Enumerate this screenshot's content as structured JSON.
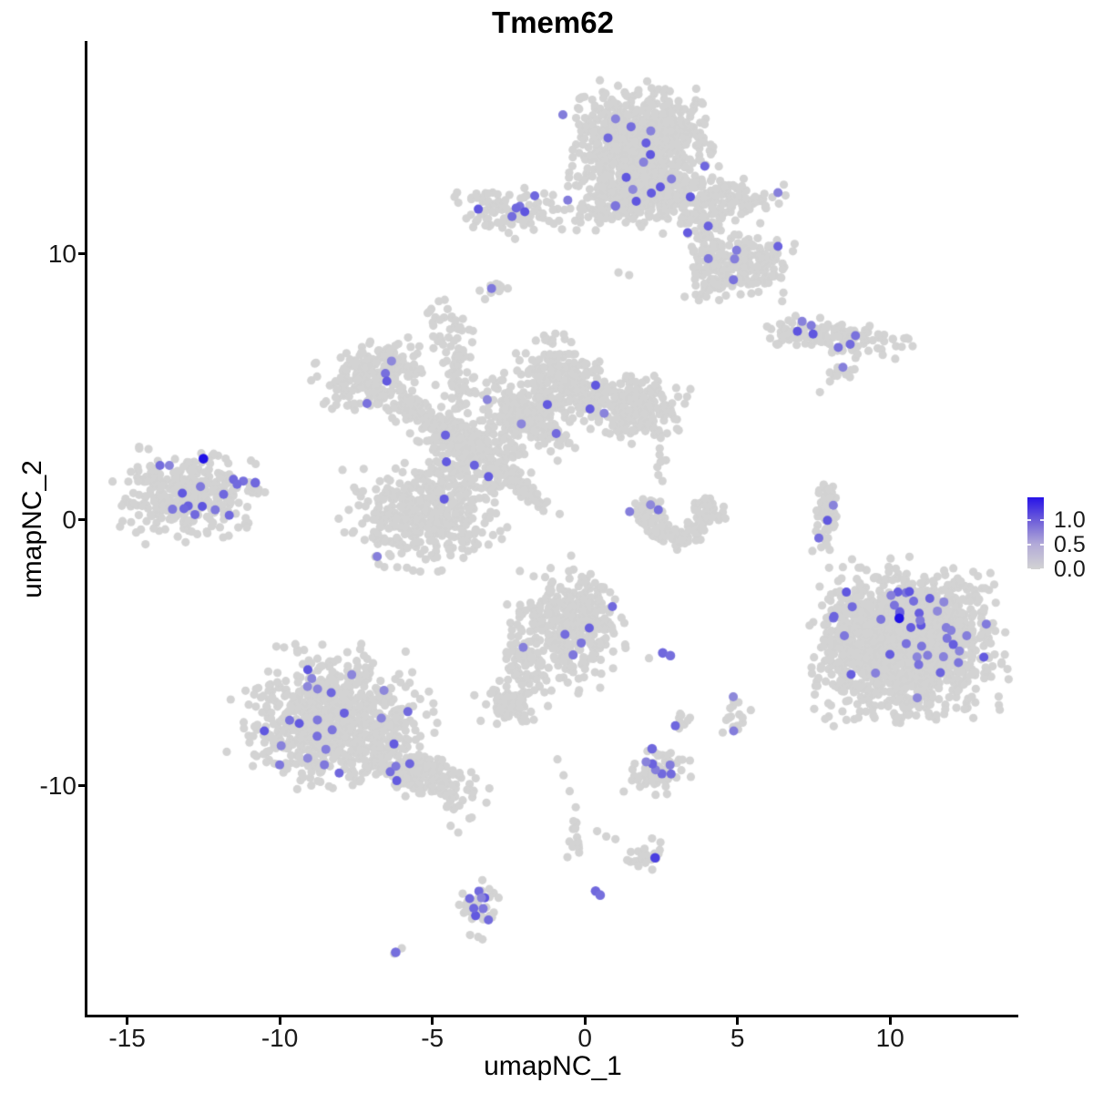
{
  "title": "Tmem62",
  "chart_data": {
    "type": "scatter",
    "title": "Tmem62",
    "xlabel": "umapNC_1",
    "ylabel": "umapNC_2",
    "xlim": [
      -16.3,
      14.2
    ],
    "ylim": [
      -18.7,
      18.0
    ],
    "x_ticks": [
      -15,
      -10,
      -5,
      0,
      5,
      10
    ],
    "y_ticks": [
      10,
      0,
      -10
    ],
    "grid": false,
    "point_color_gray": "#D3D3D3",
    "point_color_max": "#2011E6",
    "point_radius_gray": 4.6,
    "point_radius_colored": 5.0,
    "legend": {
      "position": "right",
      "labels": [
        "1.0",
        "0.5",
        "0.0"
      ],
      "values": [
        1.0,
        0.5,
        0.0
      ],
      "vmin": 0.0,
      "vmax": 1.45,
      "gradient_stops": [
        [
          "0%",
          "#D3D3D3"
        ],
        [
          "35%",
          "#B2AAD8"
        ],
        [
          "68%",
          "#6E5ED9"
        ],
        [
          "100%",
          "#2713E8"
        ]
      ]
    },
    "clusters": [
      {
        "name": "top-main-blob",
        "cx": 1.8,
        "cy": 14.0,
        "sx": 1.0,
        "sy": 1.0,
        "n": 780,
        "col": 10
      },
      {
        "name": "top-funnel",
        "cx": 1.9,
        "cy": 12.2,
        "sx": 0.62,
        "sy": 0.6,
        "n": 200,
        "col": 4
      },
      {
        "name": "top-left-spur",
        "cx": 0.2,
        "cy": 11.4,
        "sx": 0.55,
        "sy": 0.28,
        "n": 42,
        "col": 1
      },
      {
        "name": "top-right-band",
        "cx": 4.5,
        "cy": 12.1,
        "sx": 1.0,
        "sy": 0.38,
        "n": 130,
        "col": 2,
        "rot": -8
      },
      {
        "name": "top-diag-arm",
        "cx": 3.9,
        "cy": 10.9,
        "sx": 0.3,
        "sy": 0.7,
        "n": 90,
        "col": 3,
        "rot": 12
      },
      {
        "name": "top-right-blob",
        "cx": 5.5,
        "cy": 9.6,
        "sx": 0.62,
        "sy": 0.5,
        "n": 130,
        "col": 3
      },
      {
        "name": "top-tail",
        "cx": 4.3,
        "cy": 9.2,
        "sx": 0.42,
        "sy": 0.48,
        "n": 70,
        "col": 2
      },
      {
        "name": "upper-left-small",
        "cx": -2.4,
        "cy": 11.6,
        "sx": 0.78,
        "sy": 0.42,
        "n": 95,
        "col": 6
      },
      {
        "name": "tiny-blob-9",
        "cx": -2.9,
        "cy": 8.7,
        "sx": 0.2,
        "sy": 0.18,
        "n": 13,
        "col": 1
      },
      {
        "name": "comma-blob",
        "cx": -4.6,
        "cy": 7.4,
        "sx": 0.28,
        "sy": 0.4,
        "n": 26,
        "col": 0
      },
      {
        "name": "right-horizontal",
        "cx": 8.0,
        "cy": 6.9,
        "sx": 1.05,
        "sy": 0.3,
        "n": 140,
        "col": 7,
        "rot": -5
      },
      {
        "name": "right-horiz-tail",
        "cx": 8.3,
        "cy": 5.6,
        "sx": 0.22,
        "sy": 0.18,
        "n": 12,
        "col": 1
      },
      {
        "name": "mid-lobe-nw",
        "cx": -6.9,
        "cy": 5.4,
        "sx": 0.85,
        "sy": 0.55,
        "n": 210,
        "col": 4,
        "rot": 20
      },
      {
        "name": "mid-arm-sw",
        "cx": -5.0,
        "cy": 3.6,
        "sx": 0.95,
        "sy": 0.3,
        "n": 160,
        "col": 1,
        "rot": -38
      },
      {
        "name": "mid-arm-vert",
        "cx": -4.1,
        "cy": 5.3,
        "sx": 0.24,
        "sy": 0.9,
        "n": 70,
        "col": 0
      },
      {
        "name": "mid-junction",
        "cx": -3.5,
        "cy": 2.3,
        "sx": 0.72,
        "sy": 0.78,
        "n": 260,
        "col": 3
      },
      {
        "name": "mid-lower-lobe",
        "cx": -5.3,
        "cy": 0.2,
        "sx": 1.05,
        "sy": 0.85,
        "n": 380,
        "col": 2
      },
      {
        "name": "mid-arm-ne",
        "cx": -1.9,
        "cy": 3.9,
        "sx": 0.85,
        "sy": 0.33,
        "n": 170,
        "col": 2,
        "rot": -40
      },
      {
        "name": "mid-upper-lobe",
        "cx": -0.9,
        "cy": 5.2,
        "sx": 0.68,
        "sy": 0.72,
        "n": 230,
        "col": 3
      },
      {
        "name": "mid-right-lobe",
        "cx": 1.5,
        "cy": 4.2,
        "sx": 0.85,
        "sy": 0.52,
        "n": 230,
        "col": 2,
        "rot": -15
      },
      {
        "name": "diag-streak",
        "cx": -2.0,
        "cy": 1.2,
        "sx": 0.6,
        "sy": 0.12,
        "n": 80,
        "col": 0,
        "rot": -45
      },
      {
        "name": "small-chain",
        "cx": 2.45,
        "cy": 2.05,
        "sx": 0.12,
        "sy": 0.45,
        "n": 9,
        "col": 0
      },
      {
        "name": "crescent",
        "arc": true,
        "cx": 3.05,
        "cy": 0.25,
        "rx": 1.0,
        "ry": 0.85,
        "a0": 150,
        "a1": 395,
        "th": 0.26,
        "n": 160,
        "col": 3
      },
      {
        "name": "narrow-vertical",
        "cx": 7.9,
        "cy": 0.0,
        "sx": 0.18,
        "sy": 0.68,
        "n": 60,
        "col": 3
      },
      {
        "name": "right-big",
        "cx": 10.7,
        "cy": -4.6,
        "sx": 1.22,
        "sy": 1.22,
        "n": 1500,
        "col": 40
      },
      {
        "name": "right-big-left-fringe",
        "cx": 8.6,
        "cy": -4.8,
        "sx": 0.5,
        "sy": 1.25,
        "n": 140,
        "col": 2
      },
      {
        "name": "center-bottom",
        "cx": -0.5,
        "cy": -4.0,
        "sx": 0.78,
        "sy": 0.92,
        "n": 380,
        "col": 6
      },
      {
        "name": "center-neck",
        "cx": -2.0,
        "cy": -5.5,
        "sx": 0.33,
        "sy": 0.55,
        "n": 70,
        "col": 0,
        "rot": 15
      },
      {
        "name": "center-neck-blob",
        "cx": -2.5,
        "cy": -6.9,
        "sx": 0.5,
        "sy": 0.38,
        "n": 70,
        "col": 0
      },
      {
        "name": "small-right-49",
        "cx": 4.9,
        "cy": -7.4,
        "sx": 0.22,
        "sy": 0.3,
        "n": 16,
        "col": 2
      },
      {
        "name": "small-right-32",
        "cx": 3.15,
        "cy": -7.65,
        "sx": 0.14,
        "sy": 0.26,
        "n": 9,
        "col": 1
      },
      {
        "name": "bottom-left-big",
        "cx": -8.2,
        "cy": -7.6,
        "sx": 1.3,
        "sy": 1.12,
        "n": 800,
        "col": 24
      },
      {
        "name": "bottom-left-tail",
        "cx": -5.2,
        "cy": -9.6,
        "sx": 0.85,
        "sy": 0.38,
        "n": 180,
        "col": 3,
        "rot": -25
      },
      {
        "name": "small-24-95",
        "cx": 2.4,
        "cy": -9.5,
        "sx": 0.48,
        "sy": 0.36,
        "n": 65,
        "col": 6
      },
      {
        "name": "trail-streak",
        "cx": -0.35,
        "cy": -11.8,
        "sx": 0.1,
        "sy": 0.42,
        "n": 14,
        "col": 0
      },
      {
        "name": "small-20-126",
        "cx": 2.0,
        "cy": -12.6,
        "sx": 0.38,
        "sy": 0.26,
        "n": 26,
        "col": 0
      },
      {
        "name": "bottom-small",
        "cx": -3.45,
        "cy": -14.5,
        "sx": 0.25,
        "sy": 0.58,
        "n": 40,
        "col": 8
      },
      {
        "name": "left-big",
        "cx": -13.1,
        "cy": 0.9,
        "sx": 1.0,
        "sy": 0.75,
        "n": 310,
        "col": 14
      },
      {
        "name": "left-tail",
        "cx": -11.3,
        "cy": 1.3,
        "sx": 0.4,
        "sy": 0.15,
        "n": 18,
        "col": 1,
        "rot": -15
      }
    ],
    "singles": [
      [
        7.7,
        4.8
      ],
      [
        8.0,
        -1.8
      ],
      [
        8.3,
        -2.3
      ],
      [
        2.1,
        -5.2
      ],
      [
        -0.9,
        -9.0
      ],
      [
        -0.7,
        -9.6
      ],
      [
        -0.5,
        -10.2
      ],
      [
        -0.3,
        -10.8
      ],
      [
        0.4,
        -11.7
      ],
      [
        0.7,
        -11.9
      ],
      [
        1.0,
        -12.0
      ],
      [
        -4.4,
        -11.5
      ],
      [
        -4.15,
        -11.75
      ],
      [
        2.3,
        -8.75
      ],
      [
        -6.0,
        -16.1
      ],
      [
        -6.25,
        -16.3
      ],
      [
        1.1,
        9.3
      ],
      [
        1.45,
        9.2
      ],
      [
        -3.0,
        4.5
      ]
    ],
    "highlights": [
      {
        "x": -12.5,
        "y": 2.3,
        "v": 1.45
      },
      {
        "x": 10.3,
        "y": -3.7,
        "v": 1.45
      },
      {
        "x": 2.3,
        "y": -12.7,
        "v": 1.1
      },
      {
        "x": -10.8,
        "y": 1.4,
        "v": 0.8
      },
      {
        "x": 2.2,
        "y": -8.6,
        "v": 0.8
      },
      {
        "x": 2.55,
        "y": -5.0,
        "v": 0.8
      },
      {
        "x": 2.8,
        "y": -5.1,
        "v": 0.75
      },
      {
        "x": 0.35,
        "y": -13.95,
        "v": 0.8
      },
      {
        "x": 0.5,
        "y": -14.1,
        "v": 0.75
      },
      {
        "x": -6.2,
        "y": -16.25,
        "v": 0.75
      },
      {
        "x": 1.0,
        "y": 11.8,
        "v": 0.7
      }
    ]
  }
}
